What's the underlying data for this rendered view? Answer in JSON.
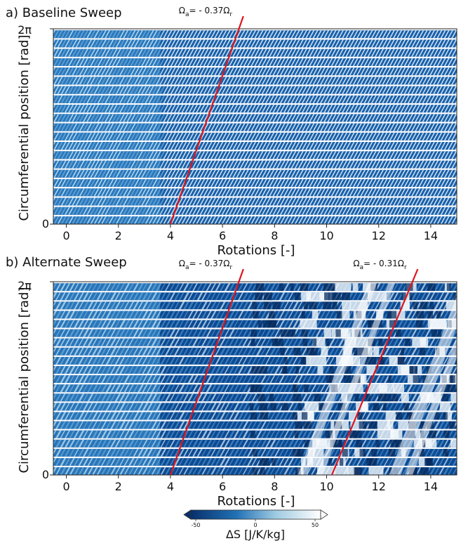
{
  "figure": {
    "colormap": {
      "low": "#08306b",
      "mid": "#ffffff",
      "high": "#ffffff",
      "stops": [
        "#08306b",
        "#1f6fb4",
        "#9ecae1",
        "#ffffff"
      ]
    },
    "line_color": "#e0141c",
    "colorbar": {
      "min": -50,
      "max": 50,
      "ticks": [
        "-50",
        "0",
        "50"
      ],
      "label": "ΔS [J/K/kg]"
    }
  },
  "chart_data": [
    {
      "type": "heatmap",
      "title": "a) Baseline Sweep",
      "xlabel": "Rotations [-]",
      "ylabel": "Circumferential position [rad]",
      "xlim": [
        -0.5,
        15
      ],
      "x_ticks": [
        0,
        2,
        4,
        6,
        8,
        10,
        12,
        14
      ],
      "x_tick_labels": [
        "0",
        "2",
        "4",
        "6",
        "8",
        "10",
        "12",
        "14"
      ],
      "ylim": [
        0,
        6.283
      ],
      "y_tick_labels": [
        "0",
        "2π"
      ],
      "passage_count": 21,
      "annotations": [
        {
          "label": "Ω",
          "sub_a": "a",
          "text": "= - 0.37Ω",
          "sub_r": "r",
          "line": {
            "x": [
              4.0,
              6.8
            ],
            "y": [
              0,
              6.283
            ]
          }
        }
      ]
    },
    {
      "type": "heatmap",
      "title": "b) Alternate Sweep",
      "xlabel": "Rotations [-]",
      "ylabel": "Circumferential position [rad]",
      "xlim": [
        -0.5,
        15
      ],
      "x_ticks": [
        0,
        2,
        4,
        6,
        8,
        10,
        12,
        14
      ],
      "x_tick_labels": [
        "0",
        "2",
        "4",
        "6",
        "8",
        "10",
        "12",
        "14"
      ],
      "ylim": [
        0,
        6.283
      ],
      "y_tick_labels": [
        "0",
        "2π"
      ],
      "passage_count": 21,
      "annotations": [
        {
          "label": "Ω",
          "sub_a": "a",
          "text": "= - 0.37Ω",
          "sub_r": "r",
          "line": {
            "x": [
              4.0,
              6.8
            ],
            "y": [
              0,
              6.283
            ]
          }
        },
        {
          "label": "Ω",
          "sub_a": "a",
          "text": "= - 0.31Ω",
          "sub_r": "r",
          "line": {
            "x": [
              10.2,
              13.5
            ],
            "y": [
              0,
              6.283
            ]
          }
        }
      ]
    }
  ]
}
